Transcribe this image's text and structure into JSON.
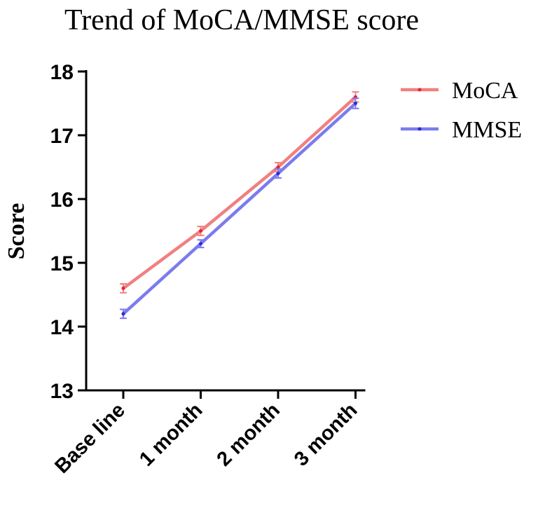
{
  "chart_data": {
    "type": "line",
    "title": "Trend of MoCA/MMSE score",
    "xlabel": "",
    "ylabel": "Score",
    "categories": [
      "Base line",
      "1 month",
      "2 month",
      "3 month"
    ],
    "ylim": [
      13,
      18
    ],
    "yticks": [
      "13",
      "14",
      "15",
      "16",
      "17",
      "18"
    ],
    "legend": "top-right",
    "series": [
      {
        "name": "MoCA",
        "color": "#f08080",
        "marker_color": "#e8232c",
        "values": [
          14.6,
          15.5,
          16.5,
          17.6
        ],
        "error": [
          0.07,
          0.07,
          0.07,
          0.08
        ]
      },
      {
        "name": "MMSE",
        "color": "#7b7bef",
        "marker_color": "#2b2bd6",
        "values": [
          14.2,
          15.3,
          16.4,
          17.5
        ],
        "error": [
          0.07,
          0.06,
          0.07,
          0.08
        ]
      }
    ]
  }
}
